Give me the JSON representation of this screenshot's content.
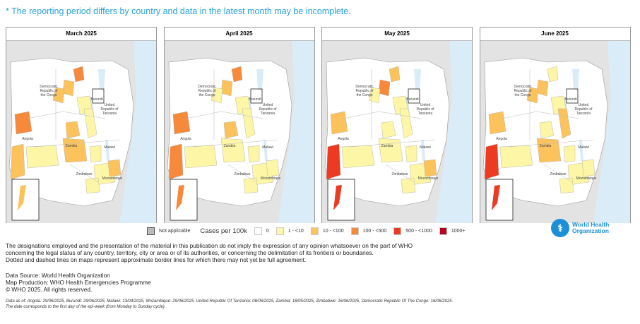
{
  "note": "* The reporting period differs by country and data in the latest month may be incomplete.",
  "colors": {
    "0": "#ffffff",
    "1": "#fdf6a6",
    "2": "#fcc35c",
    "3": "#f7893b",
    "4": "#ec3a23",
    "5": "#b5001f",
    "na": "#bbbbbb",
    "water": "#d9ecf7",
    "outside": "#e3e3e3"
  },
  "country_labels": [
    "Democratic Republic of the Congo",
    "Burundi",
    "United Republic of Tanzania",
    "Angola",
    "Zambia",
    "Malawi",
    "Zimbabwe",
    "Mozambique"
  ],
  "panels": [
    {
      "title": "March 2025",
      "regions": [
        3,
        2,
        2,
        1,
        3,
        2,
        1,
        2,
        1,
        2,
        1,
        1,
        2,
        1
      ]
    },
    {
      "title": "April 2025",
      "regions": [
        3,
        2,
        1,
        1,
        3,
        3,
        1,
        2,
        1,
        1,
        1,
        1,
        1,
        1
      ]
    },
    {
      "title": "May 2025",
      "regions": [
        2,
        3,
        1,
        1,
        2,
        4,
        1,
        1,
        1,
        1,
        1,
        1,
        2,
        1
      ]
    },
    {
      "title": "June 2025",
      "regions": [
        1,
        2,
        2,
        1,
        2,
        4,
        2,
        1,
        1,
        2,
        1,
        1,
        1,
        1
      ]
    }
  ],
  "legend": {
    "na_label": "Not applicable",
    "title": "Cases per 100k",
    "items": [
      {
        "label": "0",
        "c": "0"
      },
      {
        "label": "1 - <10",
        "c": "1"
      },
      {
        "label": "10 - <100",
        "c": "2"
      },
      {
        "label": "100 - <500",
        "c": "3"
      },
      {
        "label": "500 - <1000",
        "c": "4"
      },
      {
        "label": "1000+",
        "c": "5"
      }
    ]
  },
  "who": {
    "line1": "World Health",
    "line2": "Organization"
  },
  "disclaimer": [
    "The designations employed and the presentation of the material in this publication do not imply the expression of any opinion whatsoever on the part of WHO",
    "concerning the legal status of any country, territory, city or area or of its authorities, or concerning the delimitation of its frontiers or boundaries.",
    "Dotted and dashed lines on maps represent approximate border lines for which there may not yet be full agreement."
  ],
  "source": [
    "Data Source: World Health Organization",
    "Map Production: WHO Health Emergencies Programme",
    "© WHO 2025. All rights reserved."
  ],
  "footnote": [
    "Data as of: Angola: 29/06/2025, Burundi: 29/06/2025, Malawi: 13/04/2025, Mozambique: 29/06/2025, United Republic Of Tanzania: 08/06/2025, Zambia: 18/05/2025, Zimbabwe: 16/06/2025, Democratic Republic Of The Congo: 16/06/2025.",
    "The date corresponds to the first day of the epi-week (from Monday to Sunday cycle)."
  ]
}
